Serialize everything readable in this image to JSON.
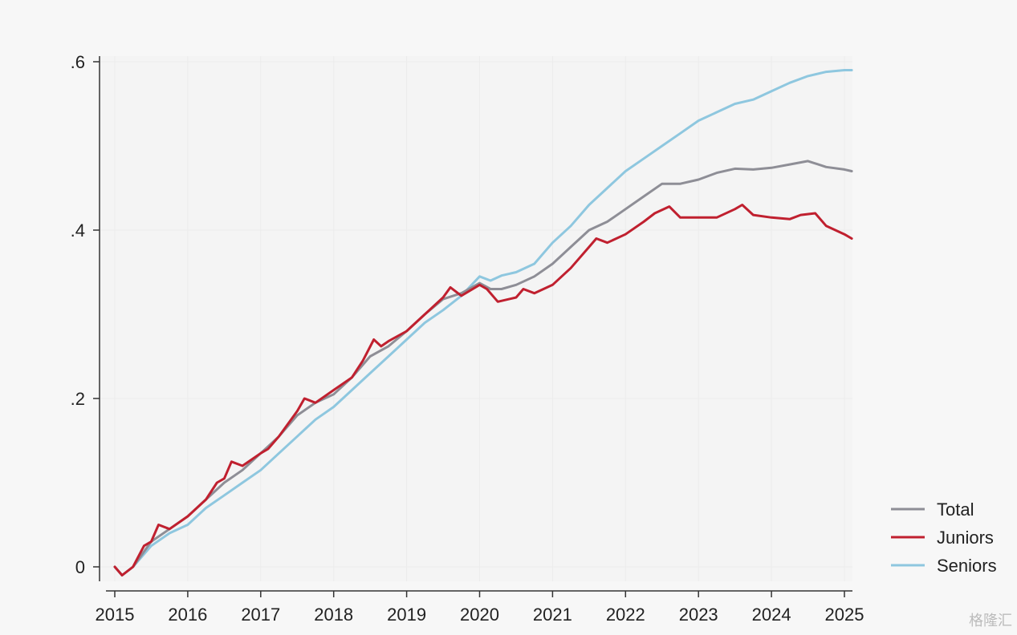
{
  "chart_data": {
    "type": "line",
    "title": "",
    "xlabel": "",
    "ylabel": "",
    "xlim": [
      2015,
      2025.1
    ],
    "ylim": [
      0,
      0.6
    ],
    "x_ticks": [
      2015,
      2016,
      2017,
      2018,
      2019,
      2020,
      2021,
      2022,
      2023,
      2024,
      2025
    ],
    "x_tick_labels": [
      "2015",
      "2016",
      "2017",
      "2018",
      "2019",
      "2020",
      "2021",
      "2022",
      "2023",
      "2024",
      "2025"
    ],
    "y_ticks": [
      0,
      0.2,
      0.4,
      0.6
    ],
    "y_tick_labels": [
      "0",
      ".2",
      ".4",
      ".6"
    ],
    "grid": true,
    "legend_position": "bottom-right",
    "series": [
      {
        "name": "Seniors",
        "color": "#8ec7df",
        "points": [
          [
            2015.0,
            0.0
          ],
          [
            2015.1,
            -0.01
          ],
          [
            2015.25,
            0.0
          ],
          [
            2015.5,
            0.025
          ],
          [
            2015.75,
            0.04
          ],
          [
            2016.0,
            0.05
          ],
          [
            2016.25,
            0.07
          ],
          [
            2016.5,
            0.085
          ],
          [
            2016.75,
            0.1
          ],
          [
            2017.0,
            0.115
          ],
          [
            2017.25,
            0.135
          ],
          [
            2017.5,
            0.155
          ],
          [
            2017.75,
            0.175
          ],
          [
            2018.0,
            0.19
          ],
          [
            2018.25,
            0.21
          ],
          [
            2018.5,
            0.23
          ],
          [
            2018.75,
            0.25
          ],
          [
            2019.0,
            0.27
          ],
          [
            2019.25,
            0.29
          ],
          [
            2019.5,
            0.305
          ],
          [
            2019.75,
            0.322
          ],
          [
            2020.0,
            0.345
          ],
          [
            2020.15,
            0.34
          ],
          [
            2020.3,
            0.346
          ],
          [
            2020.5,
            0.35
          ],
          [
            2020.75,
            0.36
          ],
          [
            2021.0,
            0.385
          ],
          [
            2021.25,
            0.405
          ],
          [
            2021.5,
            0.43
          ],
          [
            2021.75,
            0.45
          ],
          [
            2022.0,
            0.47
          ],
          [
            2022.25,
            0.485
          ],
          [
            2022.5,
            0.5
          ],
          [
            2022.75,
            0.515
          ],
          [
            2023.0,
            0.53
          ],
          [
            2023.25,
            0.54
          ],
          [
            2023.5,
            0.55
          ],
          [
            2023.75,
            0.555
          ],
          [
            2024.0,
            0.565
          ],
          [
            2024.25,
            0.575
          ],
          [
            2024.5,
            0.583
          ],
          [
            2024.75,
            0.588
          ],
          [
            2025.0,
            0.59
          ],
          [
            2025.1,
            0.59
          ]
        ]
      },
      {
        "name": "Total",
        "color": "#8e8e96",
        "points": [
          [
            2015.0,
            0.0
          ],
          [
            2015.1,
            -0.01
          ],
          [
            2015.25,
            0.0
          ],
          [
            2015.5,
            0.03
          ],
          [
            2015.75,
            0.045
          ],
          [
            2016.0,
            0.06
          ],
          [
            2016.25,
            0.08
          ],
          [
            2016.5,
            0.1
          ],
          [
            2016.75,
            0.115
          ],
          [
            2017.0,
            0.135
          ],
          [
            2017.25,
            0.155
          ],
          [
            2017.5,
            0.18
          ],
          [
            2017.75,
            0.195
          ],
          [
            2018.0,
            0.205
          ],
          [
            2018.25,
            0.225
          ],
          [
            2018.5,
            0.25
          ],
          [
            2018.75,
            0.262
          ],
          [
            2019.0,
            0.28
          ],
          [
            2019.25,
            0.3
          ],
          [
            2019.5,
            0.318
          ],
          [
            2019.75,
            0.325
          ],
          [
            2020.0,
            0.337
          ],
          [
            2020.15,
            0.33
          ],
          [
            2020.3,
            0.33
          ],
          [
            2020.5,
            0.335
          ],
          [
            2020.75,
            0.345
          ],
          [
            2021.0,
            0.36
          ],
          [
            2021.25,
            0.38
          ],
          [
            2021.5,
            0.4
          ],
          [
            2021.75,
            0.41
          ],
          [
            2022.0,
            0.425
          ],
          [
            2022.25,
            0.44
          ],
          [
            2022.5,
            0.455
          ],
          [
            2022.75,
            0.455
          ],
          [
            2023.0,
            0.46
          ],
          [
            2023.25,
            0.468
          ],
          [
            2023.5,
            0.473
          ],
          [
            2023.75,
            0.472
          ],
          [
            2024.0,
            0.474
          ],
          [
            2024.25,
            0.478
          ],
          [
            2024.5,
            0.482
          ],
          [
            2024.75,
            0.475
          ],
          [
            2025.0,
            0.472
          ],
          [
            2025.1,
            0.47
          ]
        ]
      },
      {
        "name": "Juniors",
        "color": "#c0202f",
        "points": [
          [
            2015.0,
            0.0
          ],
          [
            2015.1,
            -0.01
          ],
          [
            2015.25,
            0.0
          ],
          [
            2015.4,
            0.025
          ],
          [
            2015.5,
            0.03
          ],
          [
            2015.6,
            0.05
          ],
          [
            2015.75,
            0.045
          ],
          [
            2016.0,
            0.06
          ],
          [
            2016.25,
            0.08
          ],
          [
            2016.4,
            0.1
          ],
          [
            2016.5,
            0.105
          ],
          [
            2016.6,
            0.125
          ],
          [
            2016.75,
            0.12
          ],
          [
            2017.0,
            0.135
          ],
          [
            2017.1,
            0.14
          ],
          [
            2017.25,
            0.155
          ],
          [
            2017.5,
            0.185
          ],
          [
            2017.6,
            0.2
          ],
          [
            2017.75,
            0.195
          ],
          [
            2018.0,
            0.21
          ],
          [
            2018.25,
            0.225
          ],
          [
            2018.4,
            0.245
          ],
          [
            2018.55,
            0.27
          ],
          [
            2018.65,
            0.262
          ],
          [
            2018.75,
            0.268
          ],
          [
            2019.0,
            0.28
          ],
          [
            2019.25,
            0.3
          ],
          [
            2019.5,
            0.32
          ],
          [
            2019.6,
            0.332
          ],
          [
            2019.75,
            0.322
          ],
          [
            2020.0,
            0.335
          ],
          [
            2020.1,
            0.33
          ],
          [
            2020.25,
            0.315
          ],
          [
            2020.5,
            0.32
          ],
          [
            2020.6,
            0.33
          ],
          [
            2020.75,
            0.325
          ],
          [
            2021.0,
            0.335
          ],
          [
            2021.25,
            0.355
          ],
          [
            2021.5,
            0.38
          ],
          [
            2021.6,
            0.39
          ],
          [
            2021.75,
            0.385
          ],
          [
            2022.0,
            0.395
          ],
          [
            2022.25,
            0.41
          ],
          [
            2022.4,
            0.42
          ],
          [
            2022.6,
            0.428
          ],
          [
            2022.75,
            0.415
          ],
          [
            2023.0,
            0.415
          ],
          [
            2023.25,
            0.415
          ],
          [
            2023.5,
            0.425
          ],
          [
            2023.6,
            0.43
          ],
          [
            2023.75,
            0.418
          ],
          [
            2024.0,
            0.415
          ],
          [
            2024.25,
            0.413
          ],
          [
            2024.4,
            0.418
          ],
          [
            2024.6,
            0.42
          ],
          [
            2024.75,
            0.405
          ],
          [
            2025.0,
            0.395
          ],
          [
            2025.1,
            0.39
          ]
        ]
      }
    ],
    "legend": [
      {
        "name": "Total",
        "color": "#8e8e96"
      },
      {
        "name": "Juniors",
        "color": "#c0202f"
      },
      {
        "name": "Seniors",
        "color": "#8ec7df"
      }
    ]
  },
  "watermark": "格隆汇"
}
